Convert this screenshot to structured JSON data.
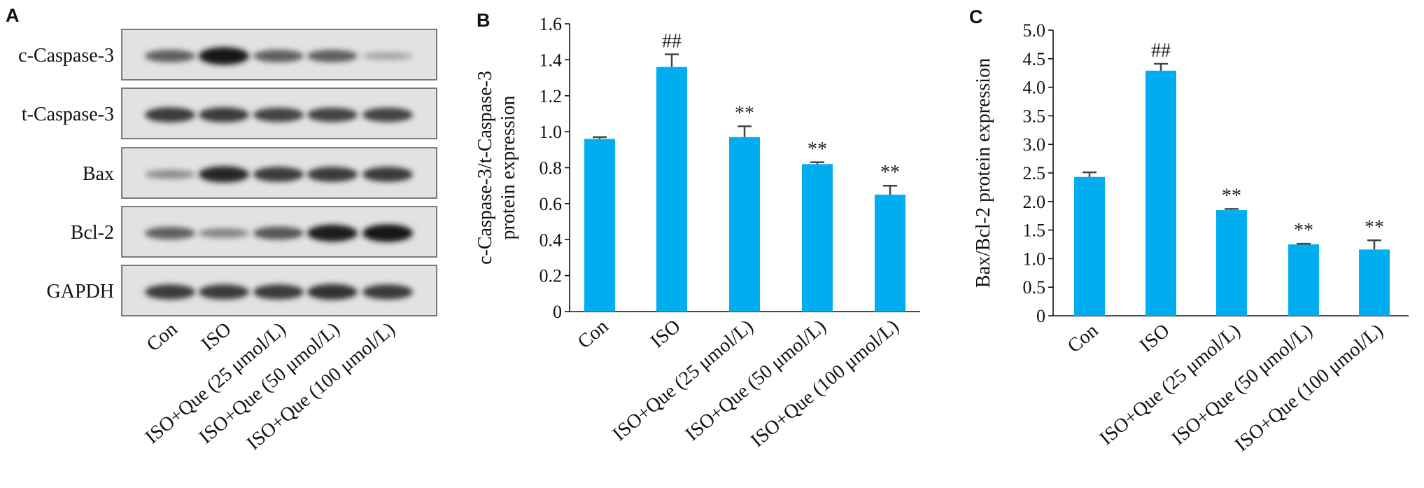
{
  "panels": {
    "a": "A",
    "b": "B",
    "c": "C"
  },
  "blot": {
    "rows": [
      "c-Caspase-3",
      "t-Caspase-3",
      "Bax",
      "Bcl-2",
      "GAPDH"
    ],
    "lanes": [
      "Con",
      "ISO",
      "ISO+Que (25 μmol/L)",
      "ISO+Que (50 μmol/L)",
      "ISO+Que (100 μmol/L)"
    ],
    "intensity": [
      [
        0.55,
        0.95,
        0.55,
        0.55,
        0.18
      ],
      [
        0.75,
        0.75,
        0.7,
        0.7,
        0.7
      ],
      [
        0.3,
        0.85,
        0.75,
        0.75,
        0.75
      ],
      [
        0.55,
        0.35,
        0.6,
        0.9,
        0.95
      ],
      [
        0.75,
        0.75,
        0.75,
        0.8,
        0.75
      ]
    ]
  },
  "chart_data": [
    {
      "type": "bar",
      "panel": "B",
      "categories": [
        "Con",
        "ISO",
        "ISO+Que (25 μmol/L)",
        "ISO+Que (50 μmol/L)",
        "ISO+Que (100 μmol/L)"
      ],
      "values": [
        0.96,
        1.36,
        0.97,
        0.82,
        0.65
      ],
      "errors": [
        0.01,
        0.07,
        0.06,
        0.01,
        0.05
      ],
      "annotations": [
        "",
        "##",
        "**",
        "**",
        "**"
      ],
      "ylabel": [
        "c-Caspase-3/t-Caspase-3",
        "protein expression"
      ],
      "ylim": [
        0,
        1.6
      ],
      "yticks": [
        "0",
        "0.2",
        "0.4",
        "0.6",
        "0.8",
        "1.0",
        "1.2",
        "1.4",
        "1.6"
      ],
      "color": "#00aeef",
      "grid": false
    },
    {
      "type": "bar",
      "panel": "C",
      "categories": [
        "Con",
        "ISO",
        "ISO+Que (25 μmol/L)",
        "ISO+Que (50 μmol/L)",
        "ISO+Que (100 μmol/L)"
      ],
      "values": [
        2.43,
        4.29,
        1.85,
        1.25,
        1.16
      ],
      "errors": [
        0.08,
        0.12,
        0.02,
        0.01,
        0.16
      ],
      "annotations": [
        "",
        "##",
        "**",
        "**",
        "**"
      ],
      "ylabel": [
        "Bax/Bcl-2 protein expression"
      ],
      "ylim": [
        0,
        5.0
      ],
      "yticks": [
        "0",
        "0.5",
        "1.0",
        "1.5",
        "2.0",
        "2.5",
        "3.0",
        "3.5",
        "4.0",
        "4.5",
        "5.0"
      ],
      "color": "#00aeef",
      "grid": false
    }
  ]
}
